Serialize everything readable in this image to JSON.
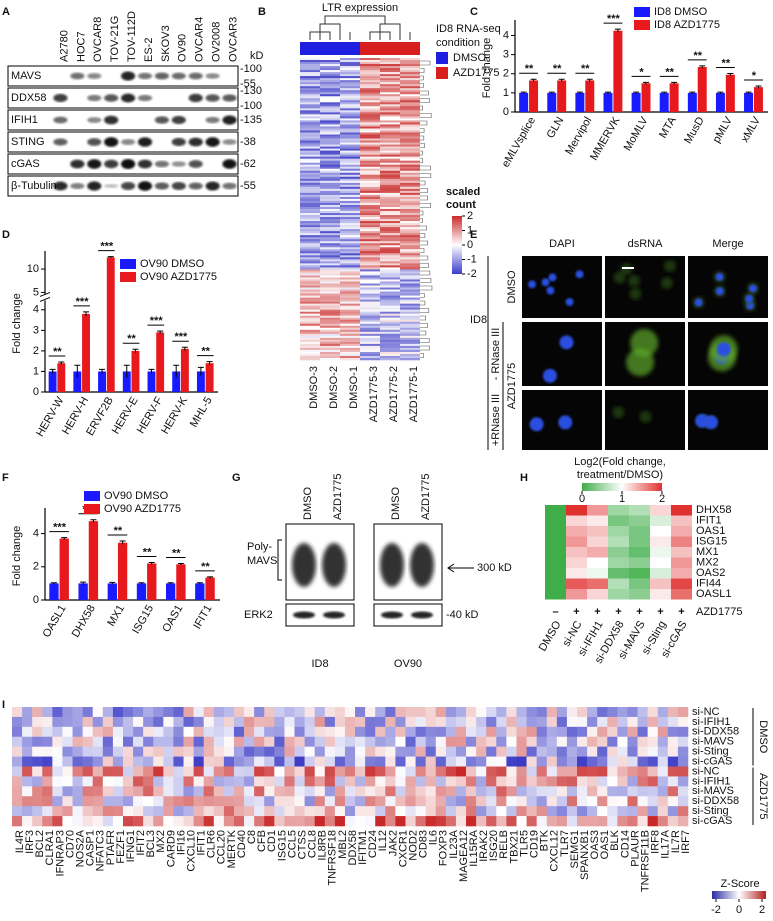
{
  "panel_labels": [
    "A",
    "B",
    "C",
    "D",
    "E",
    "F",
    "G",
    "H",
    "I"
  ],
  "blot_a": {
    "cell_lines": [
      "A2780",
      "HOC7",
      "OVCAR8",
      "TOV-21G",
      "TOV-112D",
      "ES-2",
      "SKOV3",
      "OV90",
      "OVCAR4",
      "OV2008",
      "OVCAR3"
    ],
    "proteins": [
      "MAVS",
      "DDX58",
      "IFIH1",
      "STING",
      "cGAS",
      "β-Tubulin"
    ],
    "kd_unit": "kD",
    "kd_labels": [
      [
        "-100",
        "-55"
      ],
      [
        "-130",
        "-100"
      ],
      [
        "-135"
      ],
      [
        "-38"
      ],
      [
        "-62"
      ],
      [
        "-55"
      ]
    ]
  },
  "heatmap_b": {
    "title": "LTR expression",
    "legend_title_lines": [
      "ID8 RNA-seq",
      "condition"
    ],
    "groups": [
      "DMSO",
      "AZD1775"
    ],
    "group_colors": [
      "#1f1fe0",
      "#d81f1f"
    ],
    "colorbar_title_lines": [
      "scaled",
      "count"
    ],
    "colorbar_ticks": [
      2,
      1,
      0,
      -1,
      -2
    ],
    "columns": [
      "DMSO-3",
      "DMSO-2",
      "DMSO-1",
      "AZD1775-3",
      "AZD1775-2",
      "AZD1775-1"
    ]
  },
  "image_e": {
    "stains": [
      "DAPI",
      "dsRNA",
      "Merge"
    ],
    "treatments": [
      "DMSO",
      "AZD1775"
    ],
    "rnase": [
      "- RNase III",
      "+RNase III"
    ],
    "cell": "ID8"
  },
  "blot_g": {
    "lanes": [
      "DMSO",
      "AZD1775"
    ],
    "cells": [
      "ID8",
      "OV90"
    ],
    "band_label_lines": [
      "Poly-",
      "MAVS"
    ],
    "loading": "ERK2",
    "marker_high": "300 kD",
    "marker_low": "-40 kD"
  },
  "heatmap_i": {
    "genes": [
      "IL4R",
      "IRF3",
      "BCL2",
      "CLRA1",
      "IFNRAP3",
      "CD70",
      "NOS2A",
      "CASP1",
      "NFATC3",
      "PTAFR",
      "FEZF1",
      "IFNG1",
      "IFIT2",
      "BCL3",
      "MX2",
      "CARD9",
      "IFI16",
      "CXCL10",
      "IFIT1",
      "CLR6",
      "CCL20",
      "MERTK",
      "CD40",
      "C8",
      "CFB",
      "CD1",
      "ISG15",
      "CCL5",
      "CTSS",
      "CCL8",
      "IL8RB",
      "TNFRSF18",
      "MBL2",
      "DDX58",
      "IFITM1",
      "CD24",
      "IL12",
      "JAK2",
      "CXCR1",
      "NOD2",
      "CD83",
      "IL6",
      "FOXP3",
      "IL23A",
      "MAGEA12",
      "IL15RA",
      "IRAK2",
      "ISG20",
      "RELB",
      "TBX21",
      "TLR5",
      "CD19",
      "BTK",
      "CXCL12",
      "TLR7",
      "SEMG1",
      "SPANXB1",
      "OAS3",
      "OAS1",
      "BLK",
      "CD14",
      "PLAUR",
      "TNFRSF11B",
      "IRF8",
      "IL17A",
      "IL7R",
      "IRF7"
    ],
    "rows": [
      "si-NC",
      "si-IFIH1",
      "si-DDX58",
      "si-MAVS",
      "si-Sting",
      "si-cGAS",
      "si-NC",
      "si-IFIH1",
      "si-MAVS",
      "si-DDX58",
      "si-Sting",
      "si-cGAS"
    ],
    "groups": [
      "DMSO",
      "AZD1775"
    ],
    "legend_title": "Z-Score",
    "legend_ticks": [
      -2,
      0,
      2
    ]
  },
  "chart_data": [
    {
      "type": "bar",
      "ylabel": "Fold change",
      "categories": [
        "eMLVsplice",
        "GLN",
        "Mervipol",
        "MMERVK",
        "MoMLV",
        "MTA",
        "MusD",
        "pMLV",
        "xMLV"
      ],
      "series": [
        {
          "name": "ID8 DMSO",
          "color": "#1a1aff",
          "values": [
            1,
            1,
            1,
            1,
            1,
            1,
            1,
            1,
            1
          ],
          "errors": [
            0.04,
            0.04,
            0.04,
            0.04,
            0.04,
            0.04,
            0.04,
            0.04,
            0.04
          ]
        },
        {
          "name": "ID8 AZD1775",
          "color": "#e8191c",
          "values": [
            1.65,
            1.65,
            1.65,
            4.25,
            1.5,
            1.5,
            2.35,
            1.95,
            1.3
          ],
          "errors": [
            0.06,
            0.06,
            0.06,
            0.08,
            0.05,
            0.05,
            0.06,
            0.06,
            0.06
          ]
        }
      ],
      "significance": [
        "**",
        "**",
        "**",
        "***",
        "*",
        "**",
        "**",
        "**",
        "*"
      ],
      "ylim": [
        0,
        4.6
      ],
      "yticks": [
        0,
        1,
        2,
        3,
        4
      ],
      "legend": "top-right"
    },
    {
      "type": "bar",
      "ylabel": "Fold change",
      "categories": [
        "HERV-W",
        "HERV-H",
        "ERVF2B",
        "HERV-E",
        "HERV-F",
        "HERV-K",
        "MHL-5"
      ],
      "series": [
        {
          "name": "OV90 DMSO",
          "color": "#1a1aff",
          "values": [
            1,
            1,
            1,
            1,
            1,
            1,
            1
          ],
          "errors": [
            0.1,
            0.3,
            0.1,
            0.3,
            0.1,
            0.3,
            0.2
          ]
        },
        {
          "name": "OV90 AZD1775",
          "color": "#e8191c",
          "values": [
            1.4,
            3.8,
            12.5,
            2.0,
            2.9,
            2.1,
            1.4
          ],
          "errors": [
            0.06,
            0.1,
            0.15,
            0.08,
            0.06,
            0.08,
            0.08
          ]
        }
      ],
      "significance": [
        "**",
        "***",
        "***",
        "**",
        "***",
        "***",
        "**"
      ],
      "ylim": [
        0,
        13
      ],
      "ybreak": [
        4.4,
        4.8
      ],
      "yticks": [
        0,
        1,
        2,
        3,
        4,
        5,
        10
      ],
      "legend": "top-right"
    },
    {
      "type": "bar",
      "ylabel": "Fold change",
      "categories": [
        "OASL1",
        "DHX58",
        "MX1",
        "ISG15",
        "OAS1",
        "IFIT1"
      ],
      "series": [
        {
          "name": "OV90 DMSO",
          "color": "#1a1aff",
          "values": [
            1,
            1,
            1,
            1,
            1,
            1
          ],
          "errors": [
            0.04,
            0.08,
            0.06,
            0.04,
            0.04,
            0.04
          ]
        },
        {
          "name": "OV90 AZD1775",
          "color": "#e8191c",
          "values": [
            3.7,
            4.75,
            3.45,
            2.2,
            2.15,
            1.35
          ],
          "errors": [
            0.06,
            0.08,
            0.1,
            0.06,
            0.05,
            0.04
          ]
        }
      ],
      "significance": [
        "***",
        "***",
        "**",
        "**",
        "**",
        "**"
      ],
      "ylim": [
        0,
        5.3
      ],
      "yticks": [
        0,
        2,
        4
      ],
      "legend": "top-left"
    },
    {
      "type": "heatmap",
      "title_lines": [
        "Log2(Fold change,",
        "treatment/DMSO)"
      ],
      "rows": [
        "DHX58",
        "IFIT1",
        "OAS1",
        "ISG15",
        "MX1",
        "MX2",
        "OAS2",
        "IFI44",
        "OASL1"
      ],
      "columns": [
        "DMSO",
        "si-NC",
        "si-IFIH1",
        "si-DDX58",
        "si-MAVS",
        "si-Sting",
        "si-cGAS"
      ],
      "values": [
        [
          0,
          2,
          1.5,
          0.5,
          0.6,
          1.2,
          2
        ],
        [
          0,
          1.2,
          1.1,
          0.3,
          0.4,
          0.8,
          1.3
        ],
        [
          0,
          1.4,
          1.3,
          0.5,
          0.3,
          1.0,
          1.4
        ],
        [
          0,
          1.5,
          1.2,
          0.6,
          0.3,
          1.1,
          1.6
        ],
        [
          0,
          1.3,
          1.4,
          0.4,
          0.2,
          0.9,
          1.3
        ],
        [
          0,
          1.2,
          1.0,
          0.5,
          0.4,
          1.0,
          1.5
        ],
        [
          0,
          1.1,
          0.9,
          0.2,
          0.1,
          0.8,
          1.4
        ],
        [
          0,
          1.8,
          1.7,
          0.6,
          0.3,
          1.3,
          1.9
        ],
        [
          0,
          1.5,
          1.2,
          0.5,
          0.4,
          1.1,
          1.7
        ]
      ],
      "zlim": [
        0,
        2
      ],
      "colorbar_ticks": [
        0,
        1,
        2
      ],
      "colors": [
        "#3fae49",
        "#ffffff",
        "#e0312f"
      ],
      "treatment_label": "AZD1775",
      "treatment_marks": [
        "–",
        "+",
        "+",
        "+",
        "+",
        "+",
        "+"
      ]
    }
  ]
}
